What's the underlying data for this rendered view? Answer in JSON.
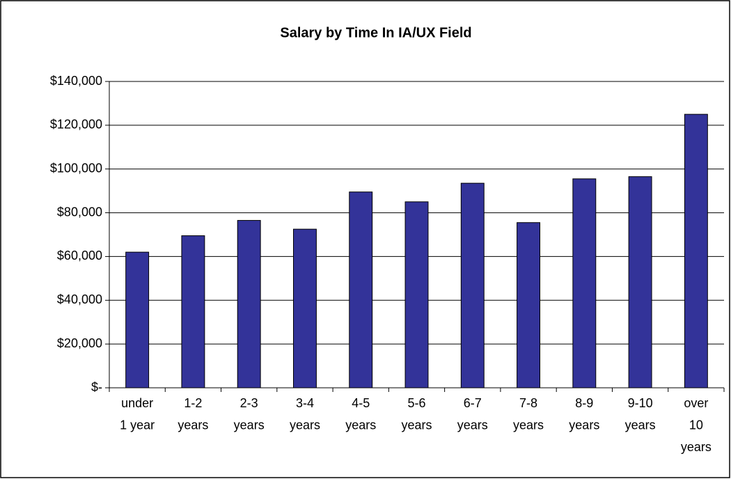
{
  "chart_data": {
    "type": "bar",
    "title": "Salary by Time In IA/UX Field",
    "categories": [
      [
        "under",
        "1 year"
      ],
      [
        "1-2",
        "years"
      ],
      [
        "2-3",
        "years"
      ],
      [
        "3-4",
        "years"
      ],
      [
        "4-5",
        "years"
      ],
      [
        "5-6",
        "years"
      ],
      [
        "6-7",
        "years"
      ],
      [
        "7-8",
        "years"
      ],
      [
        "8-9",
        "years"
      ],
      [
        "9-10",
        "years"
      ],
      [
        "over",
        "10",
        "years"
      ]
    ],
    "values": [
      62000,
      69500,
      76500,
      72500,
      89500,
      85000,
      93500,
      75500,
      95500,
      96500,
      125000
    ],
    "color": "#333399",
    "ylim": [
      0,
      140000
    ],
    "yticks": [
      {
        "value": 0,
        "label": "$-"
      },
      {
        "value": 20000,
        "label": "$20,000"
      },
      {
        "value": 40000,
        "label": "$40,000"
      },
      {
        "value": 60000,
        "label": "$60,000"
      },
      {
        "value": 80000,
        "label": "$80,000"
      },
      {
        "value": 100000,
        "label": "$100,000"
      },
      {
        "value": 120000,
        "label": "$120,000"
      },
      {
        "value": 140000,
        "label": "$140,000"
      }
    ],
    "grid": true
  }
}
